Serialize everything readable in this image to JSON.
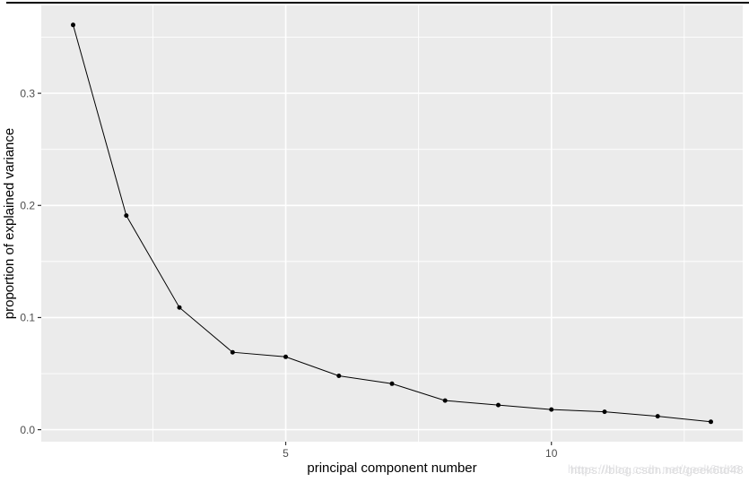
{
  "chart_data": {
    "type": "line",
    "title": "",
    "xlabel": "principal component number",
    "ylabel": "proportion of explained variance",
    "x": [
      1,
      2,
      3,
      4,
      5,
      6,
      7,
      8,
      9,
      10,
      11,
      12,
      13
    ],
    "series": [
      {
        "name": "proportion of explained variance",
        "values": [
          0.361,
          0.191,
          0.109,
          0.069,
          0.065,
          0.048,
          0.041,
          0.026,
          0.022,
          0.018,
          0.016,
          0.012,
          0.007
        ]
      }
    ],
    "xlim": [
      0.4,
      13.6
    ],
    "ylim": [
      -0.0107,
      0.3784
    ],
    "x_ticks": {
      "major": [
        5,
        10
      ],
      "labels": [
        "5",
        "10"
      ],
      "minor": [
        2.5,
        7.5,
        12.5
      ]
    },
    "y_ticks": {
      "major": [
        0.0,
        0.1,
        0.2,
        0.3
      ],
      "labels": [
        "0.0",
        "0.1",
        "0.2",
        "0.3"
      ],
      "minor": [
        0.05,
        0.15,
        0.25,
        0.35
      ]
    },
    "grid": true,
    "legend": "none",
    "colors": {
      "panel_bg": "#EBEBEB",
      "grid": "#FFFFFF",
      "line": "#000000",
      "point": "#000000",
      "tick_mark": "#333333",
      "tick_label": "#4D4D4D",
      "axis_title": "#000000"
    }
  },
  "watermark": {
    "text": "https://blog.csdn.net/geek6td48"
  }
}
